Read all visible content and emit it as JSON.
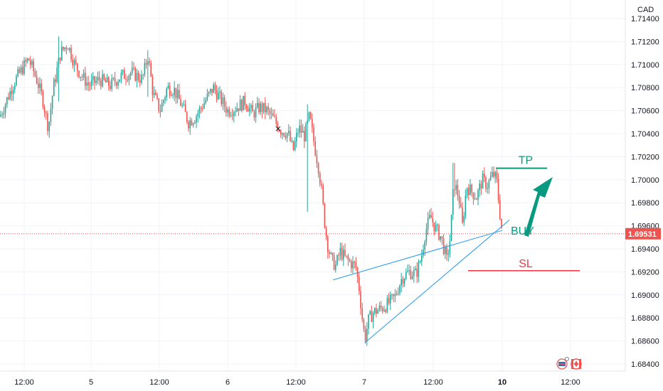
{
  "chart_data": {
    "type": "candlestick",
    "currency_label": "CAD",
    "y_ticks": [
      "1.71400",
      "1.71200",
      "1.71000",
      "1.70800",
      "1.70600",
      "1.70400",
      "1.70200",
      "1.70000",
      "1.69800",
      "1.69600",
      "1.69400",
      "1.69200",
      "1.69000",
      "1.68800",
      "1.68600",
      "1.68400"
    ],
    "x_ticks": [
      "12:00",
      "5",
      "12:00",
      "6",
      "12:00",
      "7",
      "12:00",
      "10",
      "12:00"
    ],
    "ylim": [
      1.6835,
      1.7147
    ],
    "last_price": "1.69531",
    "colors": {
      "up": "#26a69a",
      "down": "#ef5350",
      "grid": "#f0f3fa",
      "trendline": "#2196f3",
      "tp_arrow": "#089981",
      "sl_line": "#f23645",
      "last_price_bg": "#ef5350"
    },
    "price_path": [
      {
        "t": 0,
        "p": 1.7055
      },
      {
        "t": 10,
        "p": 1.707
      },
      {
        "t": 20,
        "p": 1.7085
      },
      {
        "t": 30,
        "p": 1.7095
      },
      {
        "t": 40,
        "p": 1.7105
      },
      {
        "t": 50,
        "p": 1.709
      },
      {
        "t": 60,
        "p": 1.707
      },
      {
        "t": 68,
        "p": 1.7045
      },
      {
        "t": 75,
        "p": 1.708
      },
      {
        "t": 85,
        "p": 1.711
      },
      {
        "t": 95,
        "p": 1.7118
      },
      {
        "t": 105,
        "p": 1.71
      },
      {
        "t": 115,
        "p": 1.709
      },
      {
        "t": 125,
        "p": 1.7082
      },
      {
        "t": 140,
        "p": 1.7087
      },
      {
        "t": 155,
        "p": 1.7082
      },
      {
        "t": 170,
        "p": 1.709
      },
      {
        "t": 185,
        "p": 1.7093
      },
      {
        "t": 200,
        "p": 1.7087
      },
      {
        "t": 208,
        "p": 1.7108
      },
      {
        "t": 215,
        "p": 1.7075
      },
      {
        "t": 225,
        "p": 1.706
      },
      {
        "t": 235,
        "p": 1.708
      },
      {
        "t": 245,
        "p": 1.7078
      },
      {
        "t": 255,
        "p": 1.7065
      },
      {
        "t": 265,
        "p": 1.705
      },
      {
        "t": 275,
        "p": 1.7055
      },
      {
        "t": 285,
        "p": 1.7065
      },
      {
        "t": 300,
        "p": 1.708
      },
      {
        "t": 310,
        "p": 1.707
      },
      {
        "t": 320,
        "p": 1.706
      },
      {
        "t": 330,
        "p": 1.7062
      },
      {
        "t": 345,
        "p": 1.7068
      },
      {
        "t": 355,
        "p": 1.7057
      },
      {
        "t": 365,
        "p": 1.7063
      },
      {
        "t": 375,
        "p": 1.706
      },
      {
        "t": 385,
        "p": 1.7052
      },
      {
        "t": 395,
        "p": 1.7043
      },
      {
        "t": 405,
        "p": 1.704
      },
      {
        "t": 412,
        "p": 1.7025
      },
      {
        "t": 420,
        "p": 1.7045
      },
      {
        "t": 428,
        "p": 1.7038
      },
      {
        "t": 435,
        "p": 1.7055
      },
      {
        "t": 442,
        "p": 1.703
      },
      {
        "t": 448,
        "p": 1.701
      },
      {
        "t": 452,
        "p": 1.699
      },
      {
        "t": 456,
        "p": 1.6965
      },
      {
        "t": 460,
        "p": 1.6945
      },
      {
        "t": 466,
        "p": 1.693
      },
      {
        "t": 472,
        "p": 1.6925
      },
      {
        "t": 478,
        "p": 1.6938
      },
      {
        "t": 485,
        "p": 1.6932
      },
      {
        "t": 492,
        "p": 1.6928
      },
      {
        "t": 500,
        "p": 1.6925
      },
      {
        "t": 505,
        "p": 1.6905
      },
      {
        "t": 510,
        "p": 1.6875
      },
      {
        "t": 513,
        "p": 1.6862
      },
      {
        "t": 518,
        "p": 1.6878
      },
      {
        "t": 525,
        "p": 1.6885
      },
      {
        "t": 535,
        "p": 1.6888
      },
      {
        "t": 545,
        "p": 1.6892
      },
      {
        "t": 555,
        "p": 1.6898
      },
      {
        "t": 565,
        "p": 1.6915
      },
      {
        "t": 575,
        "p": 1.692
      },
      {
        "t": 585,
        "p": 1.6918
      },
      {
        "t": 592,
        "p": 1.6932
      },
      {
        "t": 598,
        "p": 1.6955
      },
      {
        "t": 605,
        "p": 1.6968
      },
      {
        "t": 612,
        "p": 1.6958
      },
      {
        "t": 620,
        "p": 1.695
      },
      {
        "t": 628,
        "p": 1.693
      },
      {
        "t": 633,
        "p": 1.695
      },
      {
        "t": 638,
        "p": 1.6998
      },
      {
        "t": 645,
        "p": 1.6985
      },
      {
        "t": 650,
        "p": 1.696
      },
      {
        "t": 656,
        "p": 1.6995
      },
      {
        "t": 662,
        "p": 1.699
      },
      {
        "t": 670,
        "p": 1.6985
      },
      {
        "t": 678,
        "p": 1.7
      },
      {
        "t": 685,
        "p": 1.6995
      },
      {
        "t": 693,
        "p": 1.7005
      },
      {
        "t": 698,
        "p": 1.7
      },
      {
        "t": 702,
        "p": 1.6975
      },
      {
        "t": 706,
        "p": 1.6953
      }
    ],
    "spikes": [
      {
        "t": 82,
        "high": 1.71245,
        "low": 1.7068
      },
      {
        "t": 68,
        "high": 1.706,
        "low": 1.70385
      },
      {
        "t": 208,
        "high": 1.71125,
        "low": 1.7072
      },
      {
        "t": 432,
        "high": 1.70655,
        "low": 1.6972
      },
      {
        "t": 638,
        "high": 1.70145,
        "low": 1.6985
      },
      {
        "t": 513,
        "high": 1.687,
        "low": 1.68585
      }
    ],
    "annotations": {
      "tp_label": "TP",
      "buy_label": "BUY",
      "sl_label": "SL",
      "tp_level": 1.701,
      "sl_level": 1.6921,
      "trendlines": [
        {
          "t1": 513,
          "p1": 1.68585,
          "t2": 716,
          "p2": 1.6965
        },
        {
          "t1": 468,
          "p1": 1.6913,
          "t2": 706,
          "p2": 1.6956
        }
      ]
    }
  }
}
